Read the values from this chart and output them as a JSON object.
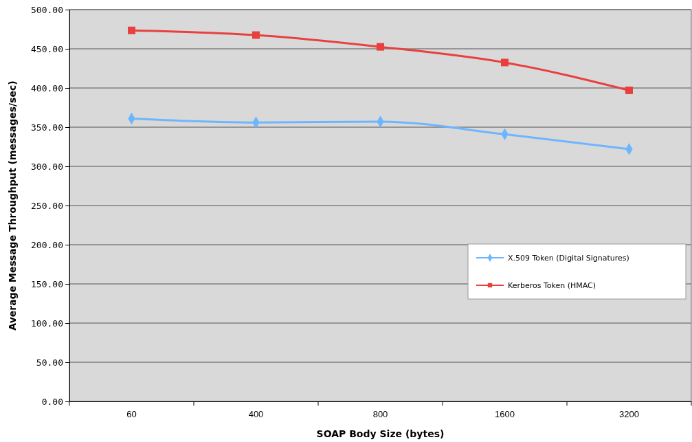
{
  "chart_data": {
    "type": "line",
    "xlabel": "SOAP Body Size (bytes)",
    "ylabel": "Average Message Throughput (messages/sec)",
    "categories": [
      "60",
      "400",
      "800",
      "1600",
      "3200"
    ],
    "series": [
      {
        "name": "X.509 Token (Digital Signatures)",
        "color": "#6db6ff",
        "marker": "diamond",
        "values": [
          361,
          356,
          357,
          341,
          322
        ]
      },
      {
        "name": "Kerberos Token (HMAC)",
        "color": "#e8403f",
        "marker": "square",
        "values": [
          473.5,
          467.5,
          452.5,
          432.5,
          397
        ]
      }
    ],
    "ylim": [
      0,
      500
    ],
    "yticks": [
      {
        "value": 0,
        "label": "0.00"
      },
      {
        "value": 50,
        "label": "50.00"
      },
      {
        "value": 100,
        "label": "100.00"
      },
      {
        "value": 150,
        "label": "150.00"
      },
      {
        "value": 200,
        "label": "200.00"
      },
      {
        "value": 250,
        "label": "250.00"
      },
      {
        "value": 300,
        "label": "300.00"
      },
      {
        "value": 350,
        "label": "350.00"
      },
      {
        "value": 400,
        "label": "400.00"
      },
      {
        "value": 450,
        "label": "450.00"
      },
      {
        "value": 500,
        "label": "500.00"
      }
    ],
    "grid": "y",
    "legend": "right",
    "line_style": "solid"
  }
}
